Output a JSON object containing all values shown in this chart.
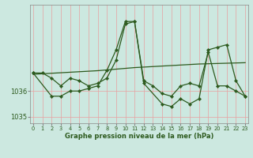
{
  "xlabel": "Graphe pression niveau de la mer (hPa)",
  "background_color": "#cce8e0",
  "plot_bg_color": "#cce8e0",
  "grid_color": "#e8a0a0",
  "line_color": "#2d5a1e",
  "ylim": [
    1034.75,
    1039.35
  ],
  "xlim": [
    -0.3,
    23.3
  ],
  "yticks": [
    1035,
    1036
  ],
  "xticks": [
    0,
    1,
    2,
    3,
    4,
    5,
    6,
    7,
    8,
    9,
    10,
    11,
    12,
    13,
    14,
    15,
    16,
    17,
    18,
    19,
    20,
    21,
    22,
    23
  ],
  "s1_x": [
    0,
    1,
    2,
    3,
    4,
    5,
    6,
    7,
    8,
    9,
    10,
    11,
    12,
    13,
    14,
    15,
    16,
    17,
    18,
    19,
    20,
    21,
    22,
    23
  ],
  "s1_y": [
    1036.7,
    1036.7,
    1036.5,
    1036.2,
    1036.5,
    1036.4,
    1036.2,
    1036.3,
    1036.5,
    1037.2,
    1038.6,
    1038.7,
    1036.4,
    1036.2,
    1035.9,
    1035.8,
    1036.2,
    1036.3,
    1036.2,
    1037.5,
    1036.2,
    1036.2,
    1036.0,
    1035.8
  ],
  "s2_x": [
    0,
    2,
    3,
    4,
    5,
    6,
    7,
    8,
    9,
    10,
    11,
    12,
    14,
    15,
    16,
    17,
    18,
    19,
    20,
    21,
    22,
    23
  ],
  "s2_y": [
    1036.7,
    1035.8,
    1035.8,
    1036.0,
    1036.0,
    1036.1,
    1036.2,
    1036.8,
    1037.6,
    1038.7,
    1038.7,
    1036.3,
    1035.5,
    1035.4,
    1035.7,
    1035.5,
    1035.7,
    1037.6,
    1037.7,
    1037.8,
    1036.4,
    1035.8
  ],
  "s3_x": [
    0,
    1,
    2,
    3,
    4,
    5,
    6,
    7,
    8,
    9,
    10,
    11,
    12,
    13,
    14,
    15,
    16,
    17,
    18,
    19,
    20,
    21,
    22,
    23
  ],
  "s3_y": [
    1036.65,
    1036.67,
    1036.69,
    1036.71,
    1036.73,
    1036.75,
    1036.77,
    1036.79,
    1036.82,
    1036.85,
    1036.88,
    1036.91,
    1036.93,
    1036.95,
    1036.97,
    1036.99,
    1037.01,
    1037.03,
    1037.05,
    1037.06,
    1037.07,
    1037.08,
    1037.09,
    1037.1
  ]
}
